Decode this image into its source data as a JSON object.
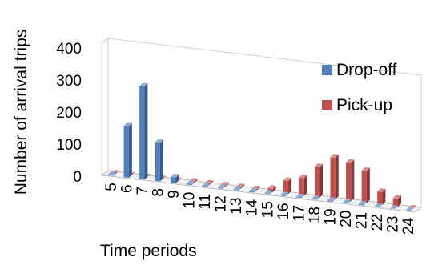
{
  "chart_data": {
    "type": "bar",
    "style": "3d-clustered-column",
    "categories": [
      "5",
      "6",
      "7",
      "8",
      "9",
      "10",
      "11",
      "12",
      "13",
      "14",
      "15",
      "16",
      "17",
      "18",
      "19",
      "20",
      "21",
      "22",
      "23",
      "24"
    ],
    "series": [
      {
        "name": "Drop-off",
        "color": "#4F81BD",
        "values": [
          3,
          160,
          290,
          120,
          18,
          3,
          2,
          2,
          2,
          2,
          2,
          2,
          2,
          2,
          2,
          2,
          2,
          0,
          0,
          0
        ]
      },
      {
        "name": "Pick-up",
        "color": "#C0504D",
        "values": [
          0,
          0,
          0,
          0,
          0,
          3,
          3,
          3,
          3,
          3,
          10,
          40,
          55,
          95,
          130,
          120,
          100,
          40,
          25,
          0
        ]
      }
    ],
    "xlabel": "Time periods",
    "ylabel": "Number of arrival trips",
    "ylim": [
      0,
      400
    ],
    "yticks": [
      "0",
      "100",
      "200",
      "300",
      "400"
    ],
    "legend_position": "right",
    "grid": false
  }
}
